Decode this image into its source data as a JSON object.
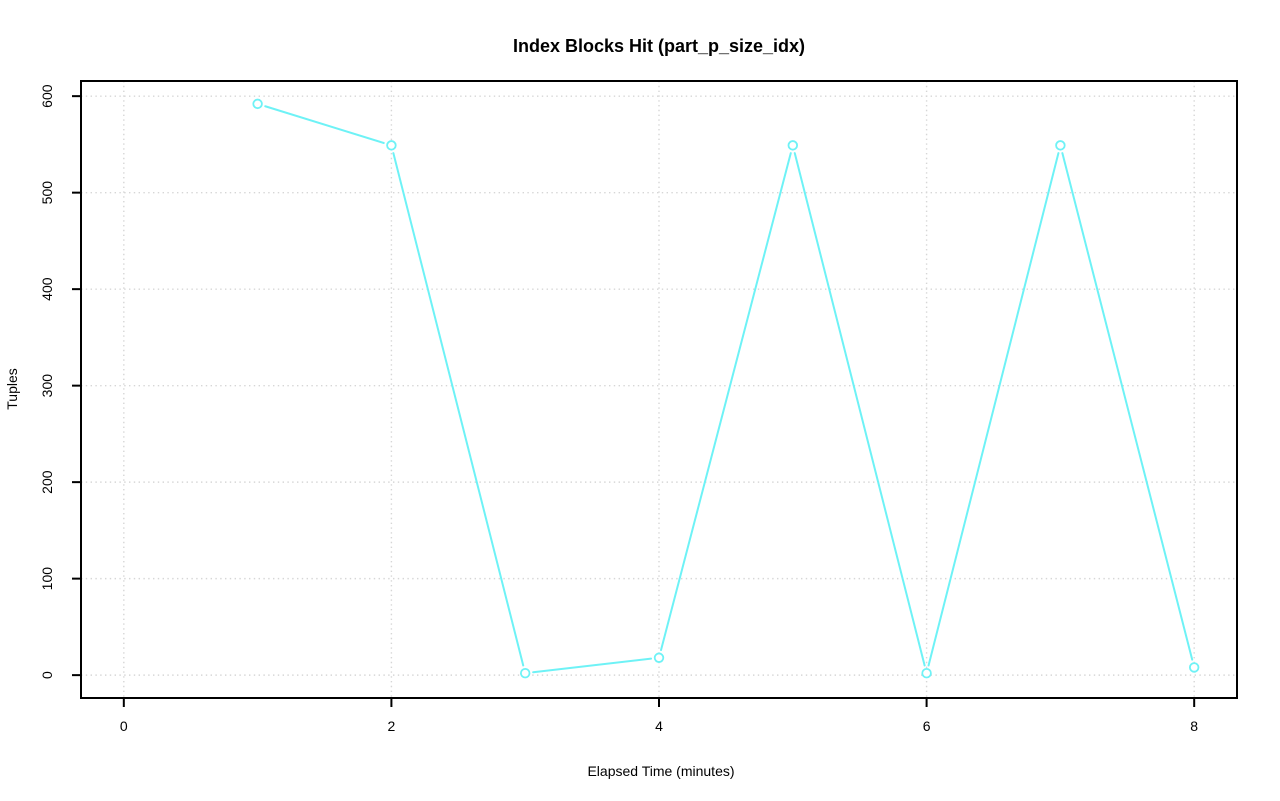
{
  "chart_data": {
    "type": "line",
    "title": "Index Blocks Hit (part_p_size_idx)",
    "xlabel": "Elapsed Time (minutes)",
    "ylabel": "Tuples",
    "x": [
      1,
      2,
      3,
      4,
      5,
      6,
      7,
      8
    ],
    "y": [
      592,
      549,
      2,
      18,
      549,
      2,
      549,
      8
    ],
    "x_ticks": [
      0,
      2,
      4,
      6,
      8
    ],
    "y_ticks": [
      0,
      100,
      200,
      300,
      400,
      500,
      600
    ],
    "xlim": [
      -0.32,
      8.32
    ],
    "ylim": [
      -23.7,
      615.7
    ],
    "grid": true,
    "grid_style": "dotted",
    "legend": "none",
    "marker": "open-circle",
    "line_type": "points-with-gapped-segments",
    "colors": {
      "series": "#6ef2f6",
      "grid": "#d6d6d6",
      "axis": "#000000",
      "background": "#ffffff"
    }
  }
}
